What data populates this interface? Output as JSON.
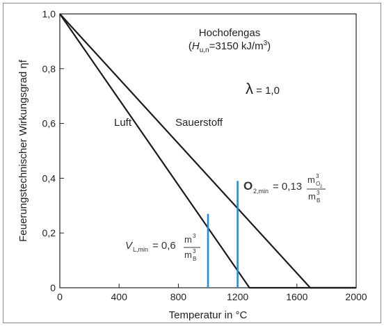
{
  "chart_data": {
    "type": "line",
    "title": "",
    "xlabel": "Temperatur in °C",
    "ylabel": "Feuerungstechnischer Wirkungsgrad ηf",
    "xlim": [
      0,
      2000
    ],
    "ylim": [
      0,
      1.0
    ],
    "xticks": [
      0,
      400,
      800,
      1200,
      1600,
      2000
    ],
    "xtick_labels": [
      "0",
      "400",
      "800",
      "1200",
      "1600",
      "2000"
    ],
    "yticks": [
      0,
      0.2,
      0.4,
      0.6,
      0.8,
      1.0
    ],
    "ytick_labels": [
      "0",
      "0,2",
      "0,4",
      "0,6",
      "0,8",
      "1,0"
    ],
    "grid": false,
    "series": [
      {
        "name": "Luft",
        "x": [
          0,
          1280,
          2000
        ],
        "y": [
          1.0,
          0.0,
          0.0
        ],
        "color": "#1a1a1a"
      },
      {
        "name": "Sauerstoff",
        "x": [
          0,
          1690,
          2000
        ],
        "y": [
          1.0,
          0.0,
          0.0
        ],
        "color": "#1a1a1a"
      }
    ],
    "vlines": [
      {
        "x": 1000,
        "y_top": 0.27,
        "color": "#1f8fd6"
      },
      {
        "x": 1200,
        "y_top": 0.39,
        "color": "#1f8fd6"
      }
    ],
    "annotations": {
      "gas_name": "Hochofengas",
      "heating_value": "(Hu,n=3150 kJ/m³)",
      "lambda": "λ = 1,0",
      "luft": "Luft",
      "sauerstoff": "Sauerstoff",
      "o2_min": "O2,min = 0,13 m³O2 / m³B",
      "vl_min": "VL,min = 0,6 m³ / m³B"
    }
  }
}
